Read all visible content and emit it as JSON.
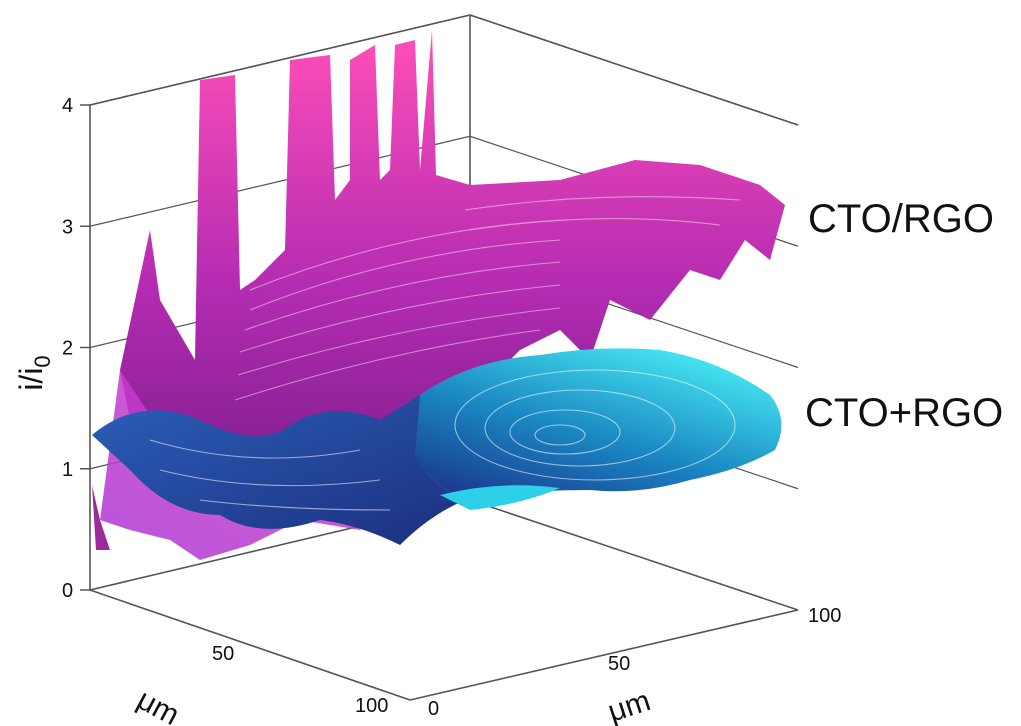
{
  "chart_data": {
    "type": "surface",
    "ylabel": {
      "main": "i/i",
      "sub": "0"
    },
    "z_ticks": [
      "0",
      "1",
      "2",
      "3",
      "4"
    ],
    "z_range": [
      0,
      4
    ],
    "x_axis": {
      "label": "μm",
      "ticks": [
        "0",
        "50",
        "100"
      ],
      "range": [
        0,
        100
      ]
    },
    "y_axis": {
      "label": "μm",
      "ticks": [
        "50",
        "100"
      ],
      "range": [
        0,
        100
      ]
    },
    "grid": true,
    "series": [
      {
        "name": "CTO/RGO",
        "mean_i_over_i0": 2.9,
        "color_low": "#8a1f8f",
        "color_high": "#ff4fb8"
      },
      {
        "name": "CTO+RGO",
        "mean_i_over_i0": 1.3,
        "color_low": "#1a2f8a",
        "color_high": "#43e6f0"
      }
    ]
  }
}
